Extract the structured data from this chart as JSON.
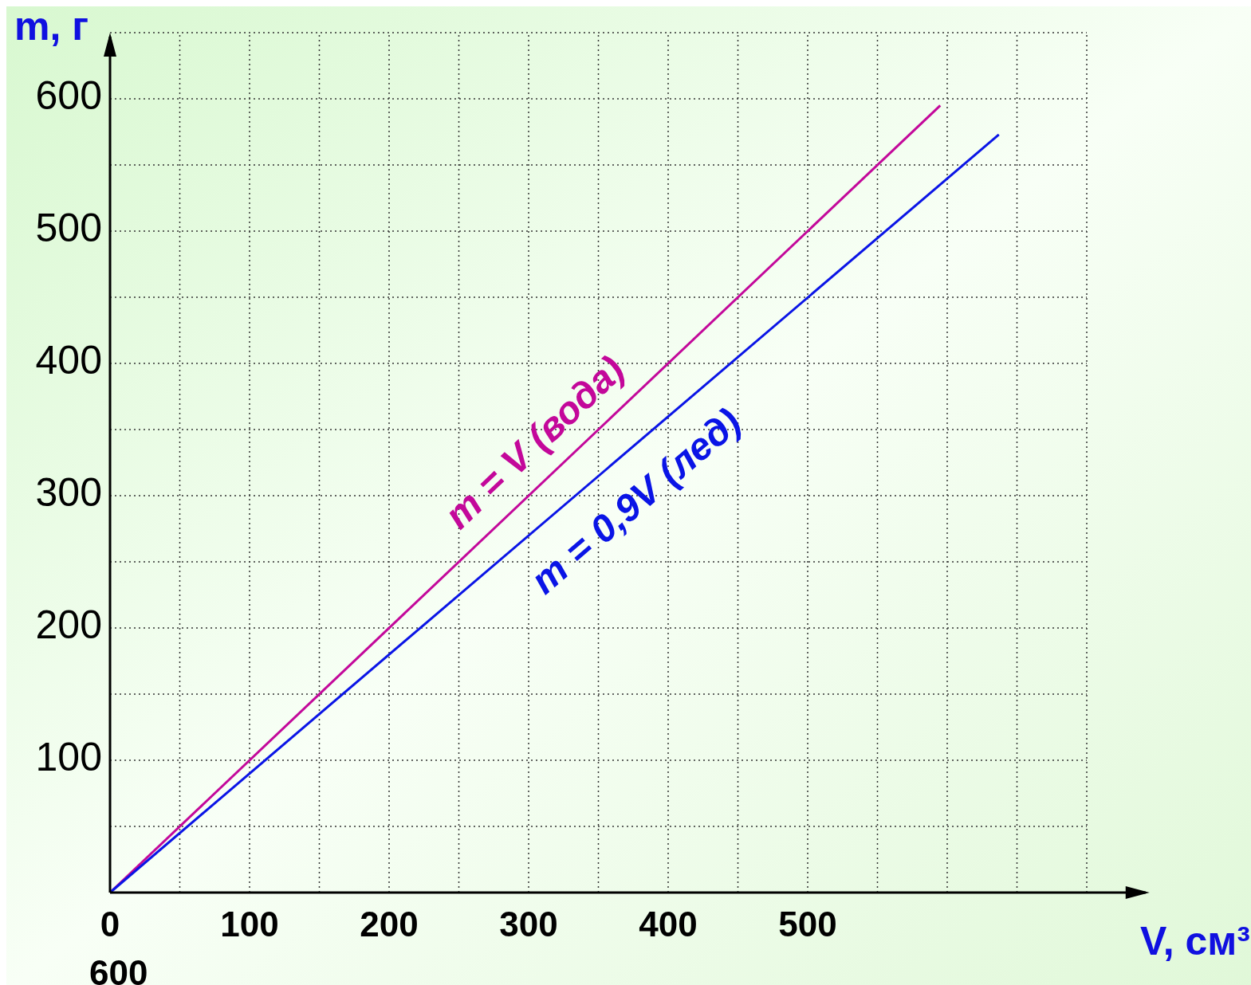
{
  "chart_data": {
    "type": "line",
    "xlabel": "V, см³",
    "ylabel": "m, г",
    "xlim": [
      0,
      745
    ],
    "ylim": [
      0,
      650
    ],
    "xticks": [
      0,
      {
        "value": 50,
        "label": null
      },
      100,
      {
        "value": 150,
        "label": null
      },
      200,
      {
        "value": 250,
        "label": null
      },
      300,
      {
        "value": 350,
        "label": null
      },
      400,
      {
        "value": 450,
        "label": null
      },
      500,
      {
        "value": 550,
        "label": null
      },
      {
        "value": 600,
        "label": null
      },
      {
        "value": 650,
        "label": null
      },
      {
        "value": 700,
        "label": null
      }
    ],
    "yticks": [
      {
        "value": 50,
        "label": null
      },
      100,
      {
        "value": 150,
        "label": null
      },
      200,
      {
        "value": 250,
        "label": null
      },
      300,
      {
        "value": 350,
        "label": null
      },
      400,
      {
        "value": 450,
        "label": null
      },
      500,
      {
        "value": 550,
        "label": null
      },
      600,
      {
        "value": 650,
        "label": null
      }
    ],
    "grid": true,
    "series": [
      {
        "name": "m = V (вода)",
        "color": "#c3089a",
        "x": [
          0,
          595
        ],
        "values": [
          0,
          595
        ]
      },
      {
        "name": "m = 0,9V (лед)",
        "color": "#0a14e6",
        "x": [
          0,
          637
        ],
        "values": [
          0,
          573
        ]
      }
    ],
    "annotations": [
      "600"
    ]
  }
}
